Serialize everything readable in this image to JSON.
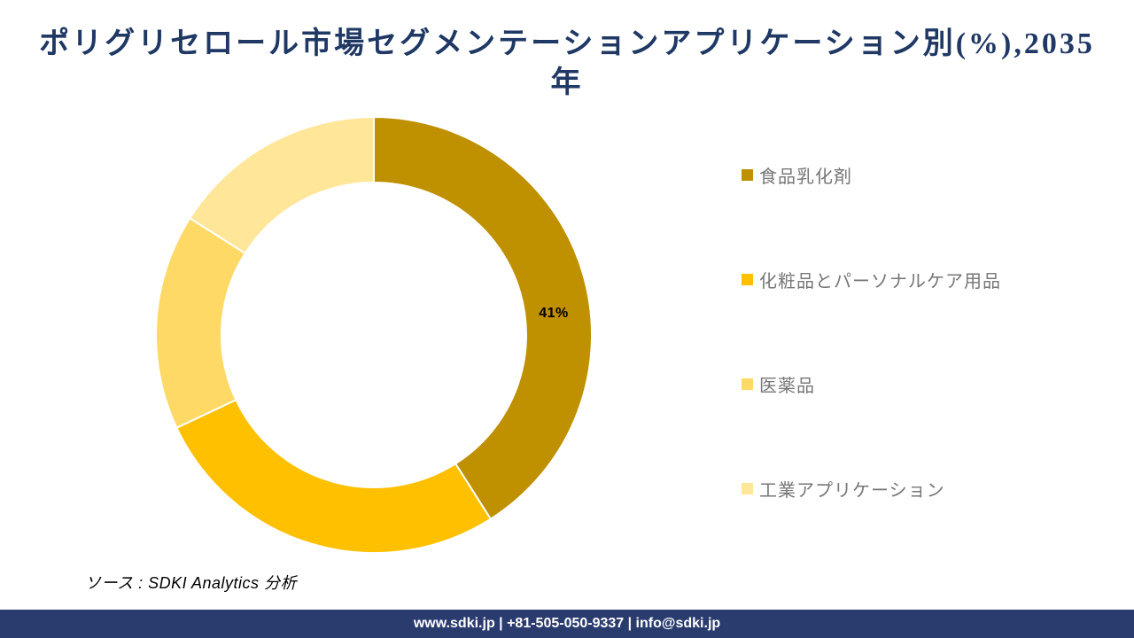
{
  "title": {
    "line1": "ポリグリセロール市場セグメンテーションアプリケーション別(%),2035",
    "line2": "年",
    "color": "#1F3864"
  },
  "chart_data": {
    "type": "pie",
    "subtype": "donut",
    "title": "ポリグリセロール市場セグメンテーションアプリケーション別(%), 2035年",
    "categories": [
      "食品乳化剤",
      "化粧品とパーソナルケア用品",
      "医薬品",
      "工業アプリケーション"
    ],
    "values": [
      41,
      27,
      16,
      16
    ],
    "unit": "%",
    "colors": [
      "#BF9000",
      "#FFC000",
      "#FFD966",
      "#FFE699"
    ],
    "data_label": "41%",
    "legend_position": "right",
    "legend_text_color": "#767676"
  },
  "source_note": "ソース : SDKI Analytics 分析",
  "footer": {
    "text": "www.sdki.jp | +81-505-050-9337 | info@sdki.jp",
    "bg_color": "#2A3B6E"
  }
}
